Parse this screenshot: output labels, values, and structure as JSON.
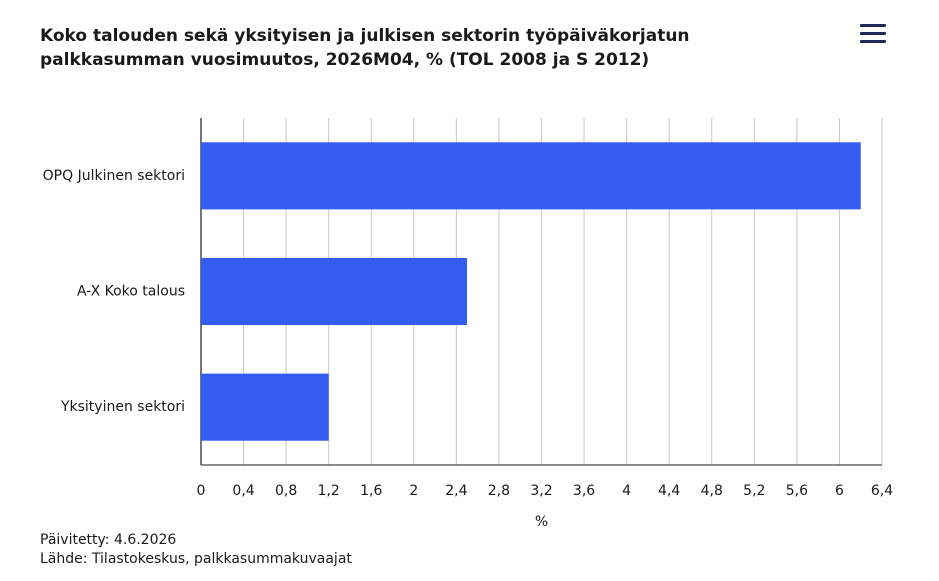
{
  "chart_data": {
    "type": "hbar",
    "title": "Koko talouden sekä yksityisen ja julkisen sektorin työpäiväkorjatun palkkasumman vuosimuutos, 2026M04, % (TOL 2008 ja S 2012)",
    "categories": [
      "OPQ Julkinen sektori",
      "A-X Koko talous",
      "Yksityinen sektori"
    ],
    "values": [
      6.2,
      2.5,
      1.2
    ],
    "color": "#335cf0",
    "xlabel": "%",
    "xlim": [
      0,
      6.4
    ],
    "xticks": [
      0,
      {
        "value": 0.4,
        "label": "0,4"
      },
      {
        "value": 0.8,
        "label": "0,8"
      },
      {
        "value": 1.2,
        "label": "1,2"
      },
      {
        "value": 1.6,
        "label": "1,6"
      },
      2,
      {
        "value": 2.4,
        "label": "2,4"
      },
      {
        "value": 2.8,
        "label": "2,8"
      },
      {
        "value": 3.2,
        "label": "3,2"
      },
      {
        "value": 3.6,
        "label": "3,6"
      },
      4,
      {
        "value": 4.4,
        "label": "4,4"
      },
      {
        "value": 4.8,
        "label": "4,8"
      },
      {
        "value": 5.2,
        "label": "5,2"
      },
      {
        "value": 5.6,
        "label": "5,6"
      },
      6,
      {
        "value": 6.4,
        "label": "6,4"
      }
    ],
    "grid": true,
    "updated": "Päivitetty: 4.6.2026",
    "source": "Lähde: Tilastokeskus, palkkasummakuvaajat"
  }
}
